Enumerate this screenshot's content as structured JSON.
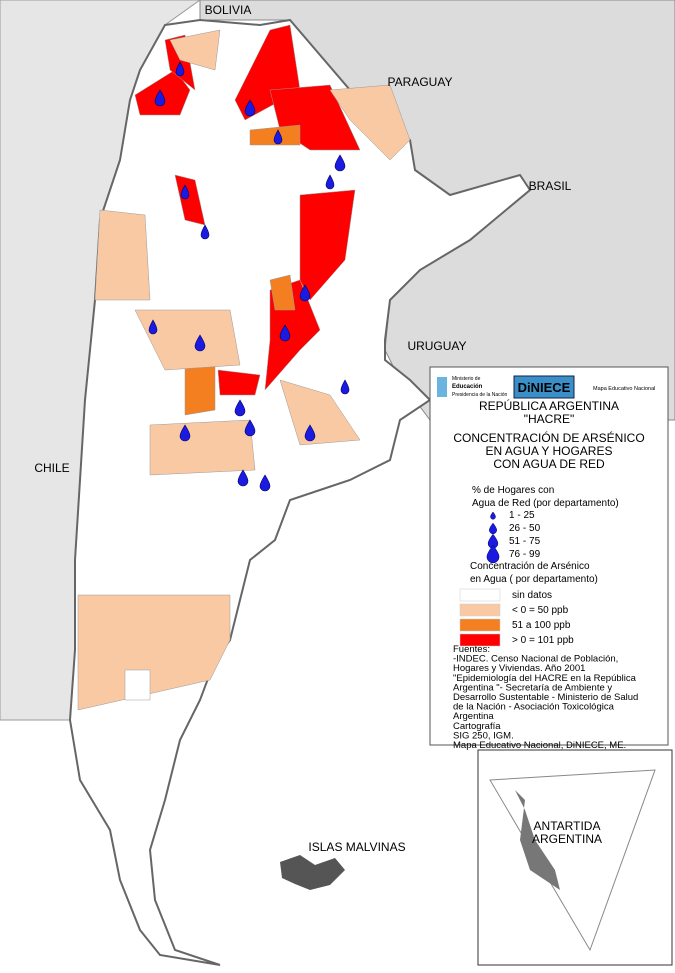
{
  "map_labels": {
    "bolivia": "BOLIVIA",
    "paraguay": "PARAGUAY",
    "brasil": "BRASIL",
    "uruguay": "URUGUAY",
    "chile": "CHILE",
    "malvinas": "ISLAS MALVINAS",
    "antartida": [
      "ANTARTIDA",
      "ARGENTINA"
    ]
  },
  "logos": {
    "ministerio": [
      "Ministerio de",
      "Educación",
      "Presidencia de la Nación"
    ],
    "diniece": "DiNIECE",
    "mapa": "Mapa Educativo Nacional"
  },
  "legend": {
    "title": [
      "REPÚBLICA ARGENTINA",
      "\"HACRE\"",
      "CONCENTRACIÓN DE ARSÉNICO",
      "EN AGUA  Y HOGARES",
      "CON AGUA DE RED"
    ],
    "drops_title": [
      "% de Hogares con",
      "Agua de Red (por departamento)"
    ],
    "drops": [
      "1 - 25",
      "26 - 50",
      "51 - 75",
      "76 - 99"
    ],
    "arsenic_title": [
      "Concentración de Arsénico",
      "en Agua ( por departamento)"
    ],
    "arsenic": [
      {
        "label": "sin datos",
        "color": "#ffffff"
      },
      {
        "label": "< 0 = 50 ppb",
        "color": "#f9c9a4"
      },
      {
        "label": "51 a 100 ppb",
        "color": "#f47f20"
      },
      {
        "label": "> 0 = 101 ppb",
        "color": "#ff0000"
      }
    ],
    "sources": [
      "Fuentes:",
      "-INDEC. Censo Nacional de Población,",
      "Hogares y Viviendas. Año 2001",
      "\"Epidemiología del HACRE en la República",
      "Argentina \"- Secretaría de Ambiente y",
      "Desarrollo Sustentable - Ministerio de Salud",
      "de la Nación - Asociación Toxicológica",
      "Argentina",
      "Cartografía",
      "SIG 250, IGM.",
      "Mapa Educativo Nacional, DiNIECE, ME."
    ]
  }
}
